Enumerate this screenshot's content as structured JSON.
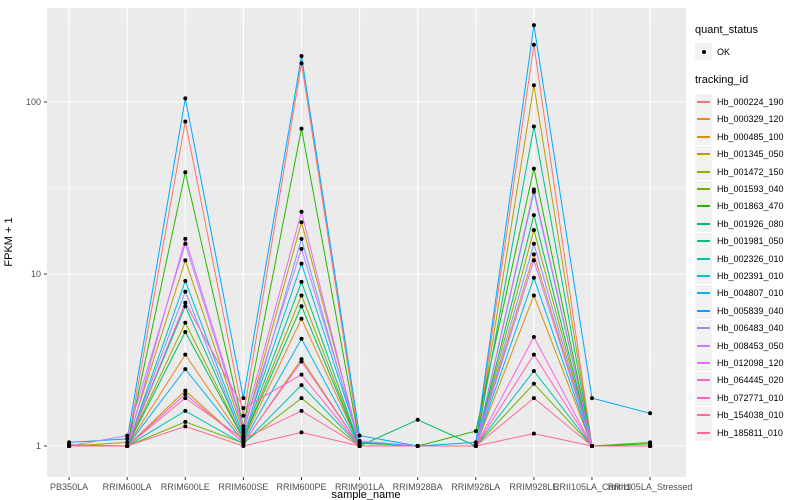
{
  "chart_data": {
    "type": "line",
    "title": "",
    "xlabel": "sample_name",
    "ylabel": "FPKM + 1",
    "y_scale": "log10",
    "y_ticks": [
      1,
      10,
      100
    ],
    "ylim": [
      0.85,
      350
    ],
    "grid": "on",
    "legend_position": "right",
    "panel_bg": "#EBEBEB",
    "grid_color": "#FFFFFF",
    "point_color": "#000000",
    "tick_label_color": "#4D4D4D",
    "categories": [
      "PB350LA",
      "RRIM600LA",
      "RRIM600LE",
      "RRIM600SE",
      "RRIM600PE",
      "RRIM901LA",
      "RRIM928BA",
      "RRIM928LA",
      "RRIM928LE",
      "RRII105LA_Control",
      "RRII105LA_Stressed"
    ],
    "series": [
      {
        "name": "Hb_000224_190",
        "color": "#F8766D",
        "values": [
          1.02,
          1.0,
          77,
          1.5,
          168,
          1.05,
          1.0,
          1.0,
          215,
          1.0,
          1.0
        ]
      },
      {
        "name": "Hb_000329_120",
        "color": "#E88526",
        "values": [
          1.0,
          1.0,
          3.4,
          1.08,
          5.5,
          1.0,
          1.0,
          1.0,
          13,
          1.0,
          1.0
        ]
      },
      {
        "name": "Hb_000485_100",
        "color": "#D39200",
        "values": [
          1.0,
          1.0,
          2.1,
          1.04,
          3.2,
          1.0,
          1.0,
          1.0,
          7.5,
          1.0,
          1.0
        ]
      },
      {
        "name": "Hb_001345_050",
        "color": "#BB9D00",
        "values": [
          1.0,
          1.05,
          12,
          1.2,
          20,
          1.04,
          1.0,
          1.0,
          125,
          1.0,
          1.0
        ]
      },
      {
        "name": "Hb_001472_150",
        "color": "#9CA700",
        "values": [
          1.0,
          1.0,
          5.2,
          1.1,
          7.5,
          1.0,
          1.0,
          1.0,
          18,
          1.0,
          1.0
        ]
      },
      {
        "name": "Hb_001593_040",
        "color": "#72B000",
        "values": [
          1.0,
          1.0,
          1.38,
          1.04,
          1.9,
          1.0,
          1.0,
          1.0,
          2.3,
          1.0,
          1.05
        ]
      },
      {
        "name": "Hb_001863_470",
        "color": "#24B700",
        "values": [
          1.0,
          1.0,
          39,
          1.3,
          70,
          1.04,
          1.0,
          1.22,
          41,
          1.0,
          1.03
        ]
      },
      {
        "name": "Hb_001926_080",
        "color": "#00BD5F",
        "values": [
          1.0,
          1.0,
          4.6,
          1.1,
          6.5,
          1.0,
          1.42,
          1.0,
          22,
          1.0,
          1.0
        ]
      },
      {
        "name": "Hb_001981_050",
        "color": "#00C08B",
        "values": [
          1.0,
          1.0,
          6.5,
          1.12,
          9.0,
          1.0,
          1.0,
          1.0,
          72,
          1.0,
          1.0
        ]
      },
      {
        "name": "Hb_002326_010",
        "color": "#00C0B2",
        "values": [
          1.0,
          1.0,
          1.6,
          1.03,
          2.26,
          1.0,
          1.0,
          1.0,
          2.73,
          1.0,
          1.0
        ]
      },
      {
        "name": "Hb_002391_010",
        "color": "#00BDD2",
        "values": [
          1.0,
          1.0,
          9.1,
          1.15,
          11.5,
          1.05,
          1.0,
          1.0,
          30,
          1.0,
          1.0
        ]
      },
      {
        "name": "Hb_004807_010",
        "color": "#00B5EC",
        "values": [
          1.0,
          1.0,
          2.8,
          1.06,
          4.2,
          1.0,
          1.0,
          1.0,
          9.5,
          1.0,
          1.0
        ]
      },
      {
        "name": "Hb_005839_040",
        "color": "#00A7FF",
        "values": [
          1.05,
          1.1,
          105,
          1.9,
          185,
          1.15,
          1.0,
          1.05,
          280,
          1.9,
          1.55
        ]
      },
      {
        "name": "Hb_006483_040",
        "color": "#7F96FF",
        "values": [
          1.0,
          1.0,
          7.9,
          1.1,
          16,
          1.0,
          1.0,
          1.0,
          15,
          1.0,
          1.0
        ]
      },
      {
        "name": "Hb_008453_050",
        "color": "#BC81FF",
        "values": [
          1.0,
          1.15,
          15,
          1.25,
          14,
          1.07,
          1.0,
          1.0,
          12,
          1.0,
          1.0
        ]
      },
      {
        "name": "Hb_012098_120",
        "color": "#E26EF7",
        "values": [
          1.0,
          1.0,
          16,
          1.3,
          23,
          1.0,
          1.0,
          1.0,
          31,
          1.0,
          1.0
        ]
      },
      {
        "name": "Hb_064445_020",
        "color": "#F863DF",
        "values": [
          1.0,
          1.0,
          2.0,
          1.05,
          3.1,
          1.0,
          1.0,
          1.0,
          4.3,
          1.0,
          1.0
        ]
      },
      {
        "name": "Hb_072771_010",
        "color": "#FF62BF",
        "values": [
          1.0,
          1.0,
          6.8,
          1.66,
          2.6,
          1.0,
          1.0,
          1.0,
          3.4,
          1.0,
          1.0
        ]
      },
      {
        "name": "Hb_154038_010",
        "color": "#FF6A9A",
        "values": [
          1.0,
          1.0,
          1.9,
          1.1,
          1.6,
          1.0,
          1.0,
          1.0,
          1.9,
          1.0,
          1.0
        ]
      },
      {
        "name": "Hb_185811_010",
        "color": "#FF6792",
        "values": [
          1.0,
          1.0,
          1.3,
          1.0,
          1.2,
          1.0,
          1.0,
          1.0,
          1.18,
          1.0,
          1.0
        ]
      }
    ],
    "legend": {
      "quant_status": {
        "title": "quant_status",
        "items": [
          {
            "label": "OK",
            "symbol": "point"
          }
        ]
      },
      "tracking_id": {
        "title": "tracking_id"
      }
    }
  }
}
